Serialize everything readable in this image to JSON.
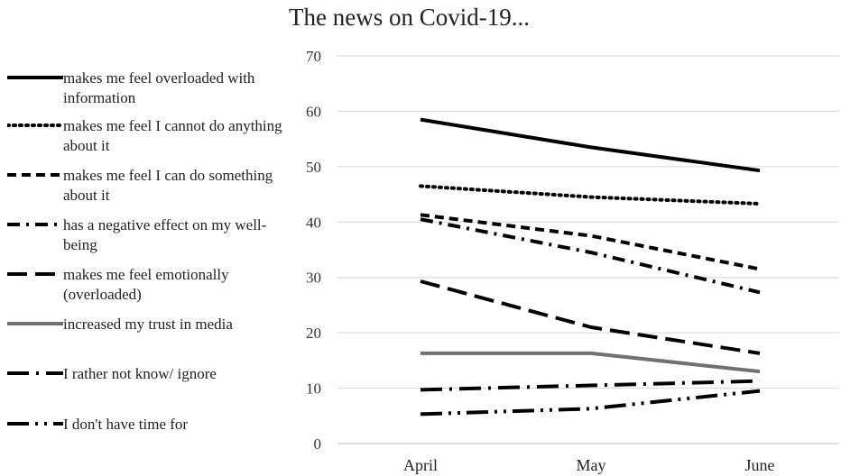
{
  "chart_data": {
    "type": "line",
    "title": "The news on Covid-19...",
    "categories": [
      "April",
      "May",
      "June"
    ],
    "ylim": [
      0,
      70
    ],
    "yticks": [
      0,
      10,
      20,
      30,
      40,
      50,
      60,
      70
    ],
    "grid": true,
    "legend_position": "left",
    "series": [
      {
        "name": "makes me feel overloaded with information",
        "values": [
          58.5,
          53.5,
          49.3
        ],
        "style": "solid",
        "color": "#000000"
      },
      {
        "name": "makes me feel I cannot do anything about it",
        "values": [
          46.5,
          44.5,
          43.3
        ],
        "style": "dotted",
        "color": "#000000"
      },
      {
        "name": "makes me feel I can do something about it",
        "values": [
          41.3,
          37.5,
          31.5
        ],
        "style": "dashed",
        "color": "#000000"
      },
      {
        "name": "has a negative effect on my well-being",
        "values": [
          40.5,
          34.5,
          27.3
        ],
        "style": "dash-dot",
        "color": "#000000"
      },
      {
        "name": "makes me feel emotionally (overloaded)",
        "values": [
          29.3,
          21.0,
          16.3
        ],
        "style": "long-dash",
        "color": "#000000"
      },
      {
        "name": "increased my trust in media",
        "values": [
          16.3,
          16.3,
          13.0
        ],
        "style": "solid",
        "color": "#707070"
      },
      {
        "name": "I rather not know/ ignore",
        "values": [
          9.7,
          10.5,
          11.3
        ],
        "style": "long-dash-dot",
        "color": "#000000"
      },
      {
        "name": "I don't have time for",
        "values": [
          5.3,
          6.3,
          9.5
        ],
        "style": "long-dash-dot-dot",
        "color": "#000000"
      }
    ]
  }
}
